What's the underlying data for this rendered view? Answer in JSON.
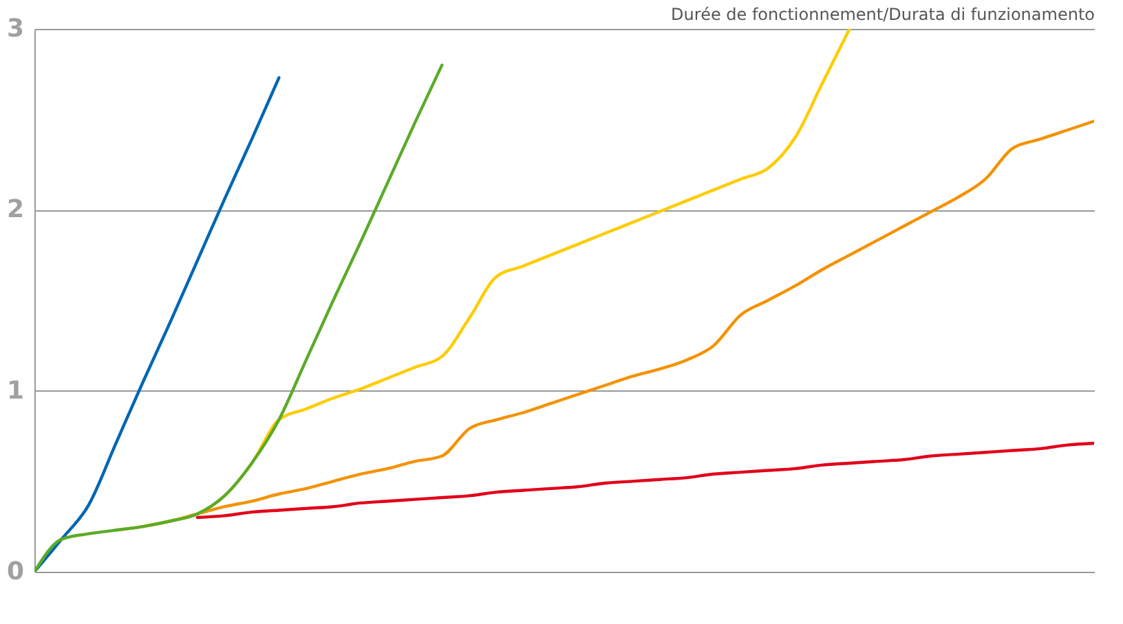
{
  "chart_data": {
    "type": "line",
    "xlabel": "Durée de fonctionnement/Durata di funzionamento",
    "categories": [
      null,
      null,
      null,
      null,
      null,
      null,
      null,
      null,
      null,
      null,
      null,
      null,
      null,
      null,
      null,
      null,
      null,
      null,
      null,
      null,
      null,
      null,
      null,
      null,
      null,
      null,
      null,
      null,
      null,
      null,
      null,
      null,
      null,
      null,
      null,
      null,
      null,
      null,
      null,
      null
    ],
    "ylim": [
      0,
      3
    ],
    "yticks": [
      0,
      1,
      2,
      3
    ],
    "grid": "y",
    "tick_labels": "y",
    "line_style": "solid",
    "series": [
      {
        "color": "#e2001a",
        "values": [
          null,
          null,
          null,
          null,
          null,
          null,
          0.3,
          0.31,
          0.33,
          0.34,
          0.35,
          0.36,
          0.38,
          0.39,
          0.4,
          0.41,
          0.42,
          0.44,
          0.45,
          0.46,
          0.47,
          0.49,
          0.5,
          0.51,
          0.52,
          0.54,
          0.55,
          0.56,
          0.57,
          0.59,
          0.6,
          0.61,
          0.62,
          0.64,
          0.65,
          0.66,
          0.67,
          0.68,
          0.7,
          0.71
        ]
      },
      {
        "color": "#f39200",
        "values": [
          null,
          null,
          null,
          0.23,
          0.25,
          0.28,
          0.32,
          0.36,
          0.39,
          0.43,
          0.46,
          0.5,
          0.54,
          0.57,
          0.61,
          0.64,
          0.79,
          0.84,
          0.88,
          0.93,
          0.98,
          1.03,
          1.08,
          1.12,
          1.17,
          1.25,
          1.42,
          1.5,
          1.58,
          1.67,
          1.75,
          1.83,
          1.91,
          1.99,
          2.07,
          2.17,
          2.34,
          2.39,
          2.44,
          2.49
        ]
      },
      {
        "color": "#ffcc00",
        "values": [
          null,
          null,
          null,
          null,
          0.25,
          0.28,
          0.32,
          0.42,
          0.6,
          0.84,
          0.9,
          0.96,
          1.01,
          1.07,
          1.13,
          1.19,
          1.4,
          1.63,
          1.69,
          1.75,
          1.81,
          1.87,
          1.93,
          1.99,
          2.05,
          2.11,
          2.17,
          2.23,
          2.4,
          2.7,
          3,
          null,
          null,
          null,
          null,
          null,
          null,
          null,
          null,
          null
        ]
      },
      {
        "color": "#0066b3",
        "values": [
          0,
          0.18,
          0.37,
          0.71,
          1.05,
          1.38,
          1.72,
          2.06,
          2.39,
          2.73,
          null,
          null,
          null,
          null,
          null,
          null,
          null,
          null,
          null,
          null,
          null,
          null,
          null,
          null,
          null,
          null,
          null,
          null,
          null,
          null,
          null,
          null,
          null,
          null,
          null,
          null,
          null,
          null,
          null,
          null
        ]
      },
      {
        "color": "#5aab2a",
        "values": [
          0,
          0.18,
          0.21,
          0.23,
          0.25,
          0.28,
          0.32,
          0.42,
          0.6,
          0.84,
          1.17,
          1.5,
          1.82,
          2.15,
          2.48,
          2.8,
          null,
          null,
          null,
          null,
          null,
          null,
          null,
          null,
          null,
          null,
          null,
          null,
          null,
          null,
          null,
          null,
          null,
          null,
          null,
          null,
          null,
          null,
          null,
          null
        ]
      }
    ]
  }
}
